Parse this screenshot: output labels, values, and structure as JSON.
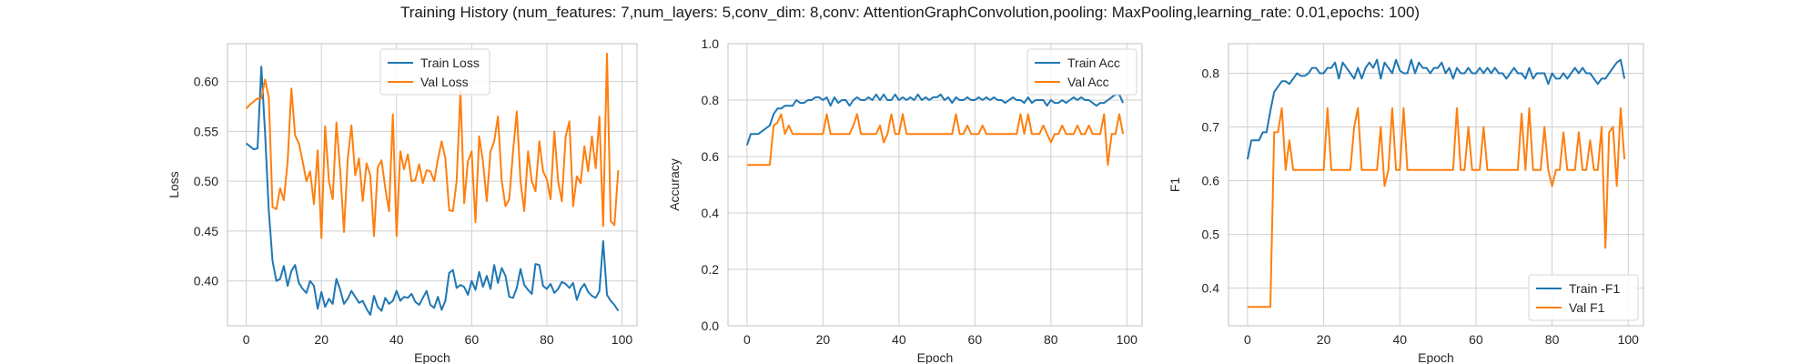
{
  "title": "Training History (num_features: 7,num_layers: 5,conv_dim: 8,conv: AttentionGraphConvolution,pooling: MaxPooling,learning_rate: 0.01,epochs: 100)",
  "colors": {
    "train": "#1f77b4",
    "val": "#ff7f0e",
    "grid": "#cfcfcf",
    "axes": "#cccccc",
    "text": "#262626"
  },
  "chart_data": [
    {
      "type": "line",
      "xlabel": "Epoch",
      "ylabel": "Loss",
      "xlim": [
        -5,
        104
      ],
      "ylim": [
        0.355,
        0.638
      ],
      "xticks": [
        0,
        20,
        40,
        60,
        80,
        100
      ],
      "xtick_labels": [
        "0",
        "20",
        "40",
        "60",
        "80",
        "100"
      ],
      "yticks": [
        0.4,
        0.45,
        0.5,
        0.55,
        0.6
      ],
      "ytick_labels": [
        "0.40",
        "0.45",
        "0.50",
        "0.55",
        "0.60"
      ],
      "grid": true,
      "legend": "top-center",
      "x": [
        0,
        1,
        2,
        3,
        4,
        5,
        6,
        7,
        8,
        9,
        10,
        11,
        12,
        13,
        14,
        15,
        16,
        17,
        18,
        19,
        20,
        21,
        22,
        23,
        24,
        25,
        26,
        27,
        28,
        29,
        30,
        31,
        32,
        33,
        34,
        35,
        36,
        37,
        38,
        39,
        40,
        41,
        42,
        43,
        44,
        45,
        46,
        47,
        48,
        49,
        50,
        51,
        52,
        53,
        54,
        55,
        56,
        57,
        58,
        59,
        60,
        61,
        62,
        63,
        64,
        65,
        66,
        67,
        68,
        69,
        70,
        71,
        72,
        73,
        74,
        75,
        76,
        77,
        78,
        79,
        80,
        81,
        82,
        83,
        84,
        85,
        86,
        87,
        88,
        89,
        90,
        91,
        92,
        93,
        94,
        95,
        96,
        97,
        98,
        99
      ],
      "series": [
        {
          "name": "Train Loss",
          "color": "#1f77b4",
          "values": [
            0.538,
            0.535,
            0.532,
            0.533,
            0.615,
            0.548,
            0.47,
            0.42,
            0.4,
            0.402,
            0.415,
            0.395,
            0.41,
            0.416,
            0.398,
            0.392,
            0.388,
            0.4,
            0.395,
            0.372,
            0.389,
            0.374,
            0.382,
            0.377,
            0.402,
            0.391,
            0.377,
            0.382,
            0.39,
            0.384,
            0.378,
            0.38,
            0.372,
            0.366,
            0.385,
            0.374,
            0.37,
            0.383,
            0.377,
            0.38,
            0.39,
            0.38,
            0.384,
            0.383,
            0.387,
            0.379,
            0.376,
            0.383,
            0.39,
            0.376,
            0.373,
            0.384,
            0.371,
            0.38,
            0.408,
            0.411,
            0.393,
            0.396,
            0.394,
            0.386,
            0.4,
            0.391,
            0.409,
            0.394,
            0.405,
            0.392,
            0.416,
            0.398,
            0.413,
            0.405,
            0.384,
            0.383,
            0.393,
            0.412,
            0.396,
            0.391,
            0.387,
            0.417,
            0.416,
            0.395,
            0.392,
            0.397,
            0.388,
            0.392,
            0.399,
            0.397,
            0.393,
            0.398,
            0.381,
            0.392,
            0.397,
            0.389,
            0.385,
            0.383,
            0.39,
            0.44,
            0.386,
            0.38,
            0.376,
            0.37
          ]
        },
        {
          "name": "Val Loss",
          "color": "#ff7f0e",
          "values": [
            0.573,
            0.577,
            0.58,
            0.583,
            0.583,
            0.602,
            0.584,
            0.474,
            0.472,
            0.493,
            0.481,
            0.52,
            0.593,
            0.546,
            0.538,
            0.52,
            0.5,
            0.51,
            0.477,
            0.531,
            0.443,
            0.555,
            0.5,
            0.482,
            0.559,
            0.51,
            0.449,
            0.522,
            0.556,
            0.506,
            0.523,
            0.48,
            0.518,
            0.506,
            0.445,
            0.514,
            0.521,
            0.493,
            0.47,
            0.567,
            0.445,
            0.53,
            0.512,
            0.527,
            0.5,
            0.501,
            0.517,
            0.498,
            0.511,
            0.51,
            0.5,
            0.522,
            0.54,
            0.523,
            0.471,
            0.47,
            0.5,
            0.591,
            0.478,
            0.52,
            0.53,
            0.459,
            0.545,
            0.52,
            0.48,
            0.53,
            0.54,
            0.565,
            0.5,
            0.475,
            0.482,
            0.53,
            0.57,
            0.5,
            0.47,
            0.53,
            0.5,
            0.49,
            0.54,
            0.51,
            0.502,
            0.482,
            0.55,
            0.5,
            0.48,
            0.545,
            0.56,
            0.475,
            0.505,
            0.498,
            0.535,
            0.51,
            0.545,
            0.513,
            0.565,
            0.455,
            0.628,
            0.46,
            0.456,
            0.511
          ]
        }
      ]
    },
    {
      "type": "line",
      "xlabel": "Epoch",
      "ylabel": "Accuracy",
      "xlim": [
        -5,
        104
      ],
      "ylim": [
        0.0,
        1.0
      ],
      "xticks": [
        0,
        20,
        40,
        60,
        80,
        100
      ],
      "xtick_labels": [
        "0",
        "20",
        "40",
        "60",
        "80",
        "100"
      ],
      "yticks": [
        0.0,
        0.2,
        0.4,
        0.6,
        0.8,
        1.0
      ],
      "ytick_labels": [
        "0.0",
        "0.2",
        "0.4",
        "0.6",
        "0.8",
        "1.0"
      ],
      "grid": true,
      "legend": "top-right",
      "x": [
        0,
        1,
        2,
        3,
        4,
        5,
        6,
        7,
        8,
        9,
        10,
        11,
        12,
        13,
        14,
        15,
        16,
        17,
        18,
        19,
        20,
        21,
        22,
        23,
        24,
        25,
        26,
        27,
        28,
        29,
        30,
        31,
        32,
        33,
        34,
        35,
        36,
        37,
        38,
        39,
        40,
        41,
        42,
        43,
        44,
        45,
        46,
        47,
        48,
        49,
        50,
        51,
        52,
        53,
        54,
        55,
        56,
        57,
        58,
        59,
        60,
        61,
        62,
        63,
        64,
        65,
        66,
        67,
        68,
        69,
        70,
        71,
        72,
        73,
        74,
        75,
        76,
        77,
        78,
        79,
        80,
        81,
        82,
        83,
        84,
        85,
        86,
        87,
        88,
        89,
        90,
        91,
        92,
        93,
        94,
        95,
        96,
        97,
        98,
        99
      ],
      "series": [
        {
          "name": "Train Acc",
          "color": "#1f77b4",
          "values": [
            0.64,
            0.68,
            0.68,
            0.68,
            0.69,
            0.7,
            0.71,
            0.75,
            0.77,
            0.77,
            0.78,
            0.78,
            0.78,
            0.8,
            0.79,
            0.79,
            0.8,
            0.8,
            0.81,
            0.81,
            0.8,
            0.81,
            0.78,
            0.81,
            0.79,
            0.8,
            0.8,
            0.78,
            0.8,
            0.81,
            0.8,
            0.8,
            0.81,
            0.8,
            0.82,
            0.8,
            0.82,
            0.8,
            0.8,
            0.82,
            0.8,
            0.81,
            0.8,
            0.81,
            0.8,
            0.82,
            0.8,
            0.81,
            0.8,
            0.81,
            0.81,
            0.82,
            0.8,
            0.81,
            0.79,
            0.81,
            0.8,
            0.8,
            0.81,
            0.8,
            0.8,
            0.81,
            0.8,
            0.81,
            0.8,
            0.81,
            0.8,
            0.8,
            0.79,
            0.8,
            0.81,
            0.8,
            0.8,
            0.79,
            0.81,
            0.79,
            0.8,
            0.8,
            0.8,
            0.78,
            0.8,
            0.79,
            0.79,
            0.8,
            0.79,
            0.8,
            0.81,
            0.8,
            0.81,
            0.8,
            0.8,
            0.79,
            0.78,
            0.79,
            0.79,
            0.8,
            0.81,
            0.82,
            0.82,
            0.79
          ]
        },
        {
          "name": "Val Acc",
          "color": "#ff7f0e",
          "values": [
            0.57,
            0.57,
            0.57,
            0.57,
            0.57,
            0.57,
            0.57,
            0.71,
            0.72,
            0.75,
            0.68,
            0.71,
            0.68,
            0.68,
            0.68,
            0.68,
            0.68,
            0.68,
            0.68,
            0.68,
            0.68,
            0.75,
            0.68,
            0.68,
            0.68,
            0.68,
            0.68,
            0.68,
            0.71,
            0.75,
            0.68,
            0.68,
            0.68,
            0.68,
            0.68,
            0.71,
            0.65,
            0.68,
            0.75,
            0.68,
            0.68,
            0.75,
            0.68,
            0.68,
            0.68,
            0.68,
            0.68,
            0.68,
            0.68,
            0.68,
            0.68,
            0.68,
            0.68,
            0.68,
            0.68,
            0.75,
            0.68,
            0.68,
            0.71,
            0.68,
            0.68,
            0.68,
            0.71,
            0.68,
            0.68,
            0.68,
            0.68,
            0.68,
            0.68,
            0.68,
            0.68,
            0.68,
            0.75,
            0.68,
            0.75,
            0.68,
            0.68,
            0.68,
            0.71,
            0.68,
            0.65,
            0.68,
            0.68,
            0.71,
            0.68,
            0.68,
            0.68,
            0.71,
            0.68,
            0.68,
            0.71,
            0.68,
            0.68,
            0.68,
            0.75,
            0.57,
            0.68,
            0.68,
            0.75,
            0.68
          ]
        }
      ]
    },
    {
      "type": "line",
      "xlabel": "Epoch",
      "ylabel": "F1",
      "xlim": [
        -5,
        104
      ],
      "ylim": [
        0.33,
        0.855
      ],
      "xticks": [
        0,
        20,
        40,
        60,
        80,
        100
      ],
      "xtick_labels": [
        "0",
        "20",
        "40",
        "60",
        "80",
        "100"
      ],
      "yticks": [
        0.4,
        0.5,
        0.6,
        0.7,
        0.8
      ],
      "ytick_labels": [
        "0.4",
        "0.5",
        "0.6",
        "0.7",
        "0.8"
      ],
      "grid": true,
      "legend": "bottom-right",
      "x": [
        0,
        1,
        2,
        3,
        4,
        5,
        6,
        7,
        8,
        9,
        10,
        11,
        12,
        13,
        14,
        15,
        16,
        17,
        18,
        19,
        20,
        21,
        22,
        23,
        24,
        25,
        26,
        27,
        28,
        29,
        30,
        31,
        32,
        33,
        34,
        35,
        36,
        37,
        38,
        39,
        40,
        41,
        42,
        43,
        44,
        45,
        46,
        47,
        48,
        49,
        50,
        51,
        52,
        53,
        54,
        55,
        56,
        57,
        58,
        59,
        60,
        61,
        62,
        63,
        64,
        65,
        66,
        67,
        68,
        69,
        70,
        71,
        72,
        73,
        74,
        75,
        76,
        77,
        78,
        79,
        80,
        81,
        82,
        83,
        84,
        85,
        86,
        87,
        88,
        89,
        90,
        91,
        92,
        93,
        94,
        95,
        96,
        97,
        98,
        99
      ],
      "series": [
        {
          "name": "Train -F1",
          "color": "#1f77b4",
          "values": [
            0.64,
            0.675,
            0.675,
            0.675,
            0.69,
            0.69,
            0.73,
            0.765,
            0.775,
            0.785,
            0.785,
            0.78,
            0.79,
            0.8,
            0.795,
            0.795,
            0.8,
            0.81,
            0.81,
            0.8,
            0.8,
            0.81,
            0.81,
            0.82,
            0.79,
            0.82,
            0.81,
            0.8,
            0.79,
            0.81,
            0.79,
            0.81,
            0.82,
            0.81,
            0.825,
            0.79,
            0.82,
            0.81,
            0.8,
            0.825,
            0.805,
            0.8,
            0.8,
            0.825,
            0.8,
            0.82,
            0.81,
            0.81,
            0.8,
            0.81,
            0.81,
            0.82,
            0.8,
            0.81,
            0.79,
            0.81,
            0.8,
            0.8,
            0.81,
            0.8,
            0.8,
            0.81,
            0.8,
            0.81,
            0.8,
            0.81,
            0.8,
            0.8,
            0.79,
            0.8,
            0.81,
            0.8,
            0.8,
            0.79,
            0.81,
            0.79,
            0.8,
            0.8,
            0.8,
            0.78,
            0.8,
            0.79,
            0.79,
            0.8,
            0.79,
            0.8,
            0.81,
            0.8,
            0.81,
            0.8,
            0.8,
            0.79,
            0.78,
            0.79,
            0.79,
            0.8,
            0.81,
            0.82,
            0.825,
            0.79
          ]
        },
        {
          "name": "Val F1",
          "color": "#ff7f0e",
          "values": [
            0.365,
            0.365,
            0.365,
            0.365,
            0.365,
            0.365,
            0.365,
            0.69,
            0.69,
            0.735,
            0.62,
            0.675,
            0.62,
            0.62,
            0.62,
            0.62,
            0.62,
            0.62,
            0.62,
            0.62,
            0.62,
            0.735,
            0.62,
            0.62,
            0.62,
            0.62,
            0.62,
            0.62,
            0.7,
            0.735,
            0.62,
            0.62,
            0.62,
            0.62,
            0.62,
            0.7,
            0.59,
            0.62,
            0.735,
            0.62,
            0.62,
            0.735,
            0.62,
            0.62,
            0.62,
            0.62,
            0.62,
            0.62,
            0.62,
            0.62,
            0.62,
            0.62,
            0.62,
            0.62,
            0.62,
            0.735,
            0.62,
            0.62,
            0.7,
            0.62,
            0.62,
            0.62,
            0.7,
            0.62,
            0.62,
            0.62,
            0.62,
            0.62,
            0.62,
            0.62,
            0.62,
            0.62,
            0.725,
            0.62,
            0.735,
            0.62,
            0.62,
            0.62,
            0.7,
            0.62,
            0.59,
            0.62,
            0.62,
            0.69,
            0.62,
            0.62,
            0.62,
            0.69,
            0.62,
            0.62,
            0.675,
            0.62,
            0.62,
            0.7,
            0.475,
            0.69,
            0.7,
            0.59,
            0.735,
            0.64
          ]
        }
      ]
    }
  ]
}
